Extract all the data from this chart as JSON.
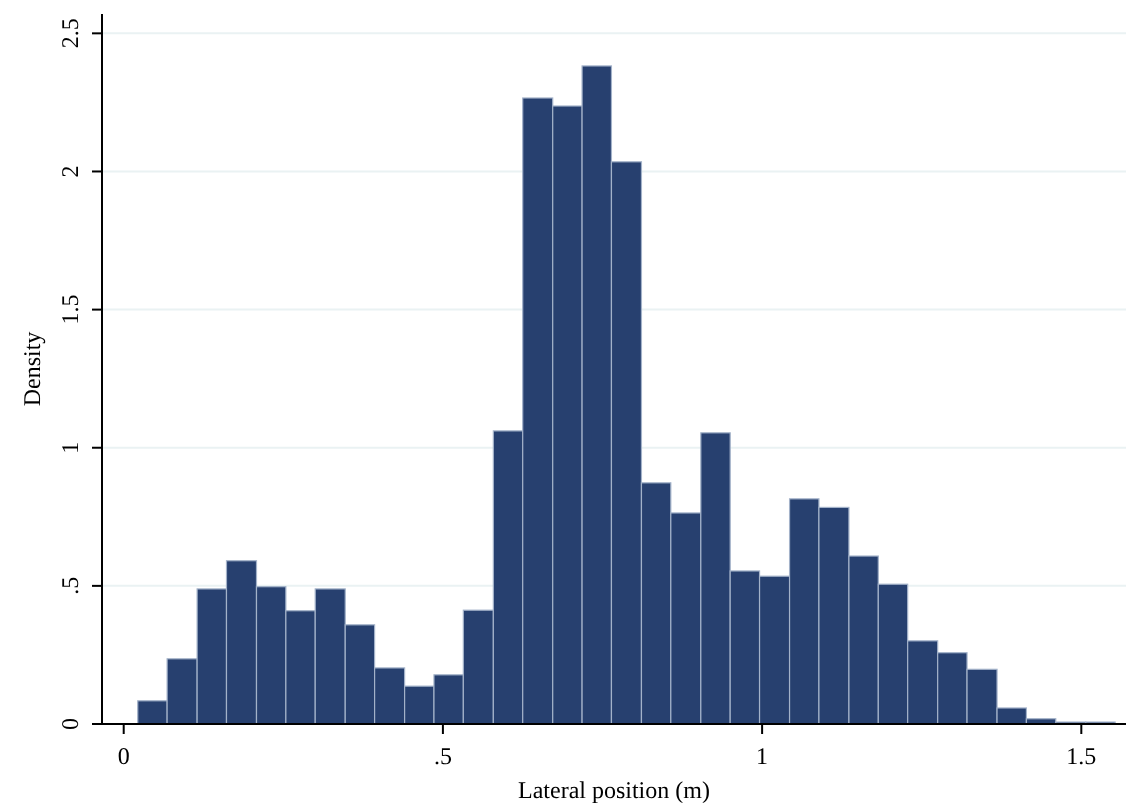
{
  "chart_data": {
    "type": "histogram",
    "xlabel": "Lateral position (m)",
    "ylabel": "Density",
    "bins": [
      0.022,
      0.068,
      0.115,
      0.161,
      0.208,
      0.254,
      0.3,
      0.347,
      0.393,
      0.44,
      0.486,
      0.532,
      0.579,
      0.625,
      0.672,
      0.718,
      0.764,
      0.811,
      0.857,
      0.904,
      0.95,
      0.996,
      1.043,
      1.089,
      1.136,
      1.182,
      1.228,
      1.275,
      1.321,
      1.368,
      1.414,
      1.46,
      1.507,
      1.553
    ],
    "values": [
      0.084,
      0.236,
      0.489,
      0.591,
      0.497,
      0.41,
      0.489,
      0.359,
      0.203,
      0.137,
      0.178,
      0.412,
      1.061,
      2.266,
      2.237,
      2.382,
      2.035,
      0.873,
      0.764,
      1.054,
      0.554,
      0.535,
      0.815,
      0.784,
      0.608,
      0.506,
      0.301,
      0.258,
      0.198,
      0.058,
      0.019,
      0.007,
      0.007
    ],
    "color": "#27406f",
    "xlim": [
      -0.034,
      1.57
    ],
    "ylim": [
      0,
      2.57
    ],
    "xticks": [
      0,
      {
        "value": 0.5,
        "label": ".5"
      },
      1,
      1.5
    ],
    "yticks": [
      0,
      {
        "value": 0.5,
        "label": ".5"
      },
      1,
      1.5,
      2,
      2.5
    ],
    "grid": "y"
  }
}
